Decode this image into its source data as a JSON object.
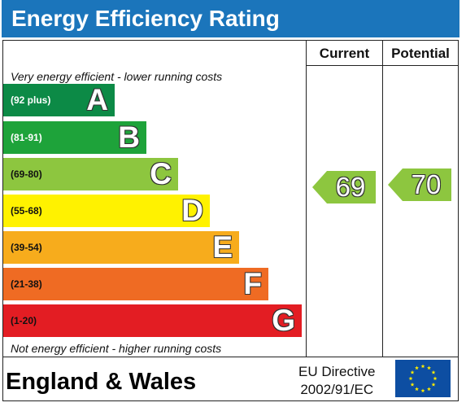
{
  "title": "Energy Efficiency Rating",
  "columns": {
    "current": "Current",
    "potential": "Potential"
  },
  "captions": {
    "top": "Very energy efficient - lower running costs",
    "bottom": "Not energy efficient - higher running costs"
  },
  "bands": [
    {
      "letter": "A",
      "range": "(92 plus)",
      "color": "#0c8a46",
      "range_color": "#ffffff"
    },
    {
      "letter": "B",
      "range": "(81-91)",
      "color": "#1ea33a",
      "range_color": "#ffffff"
    },
    {
      "letter": "C",
      "range": "(69-80)",
      "color": "#8dc63f",
      "range_color": "#111111"
    },
    {
      "letter": "D",
      "range": "(55-68)",
      "color": "#fff200",
      "range_color": "#111111"
    },
    {
      "letter": "E",
      "range": "(39-54)",
      "color": "#f7ac1c",
      "range_color": "#111111"
    },
    {
      "letter": "F",
      "range": "(21-38)",
      "color": "#ef6b23",
      "range_color": "#111111"
    },
    {
      "letter": "G",
      "range": "(1-20)",
      "color": "#e31d23",
      "range_color": "#111111"
    }
  ],
  "current": {
    "value": "69",
    "band": "C",
    "color": "#8dc63f"
  },
  "potential": {
    "value": "70",
    "band": "C",
    "color": "#8dc63f"
  },
  "footer": {
    "country": "England & Wales",
    "directive_line1": "EU Directive",
    "directive_line2": "2002/91/EC"
  },
  "icons": {
    "flag": "eu-flag-icon"
  }
}
